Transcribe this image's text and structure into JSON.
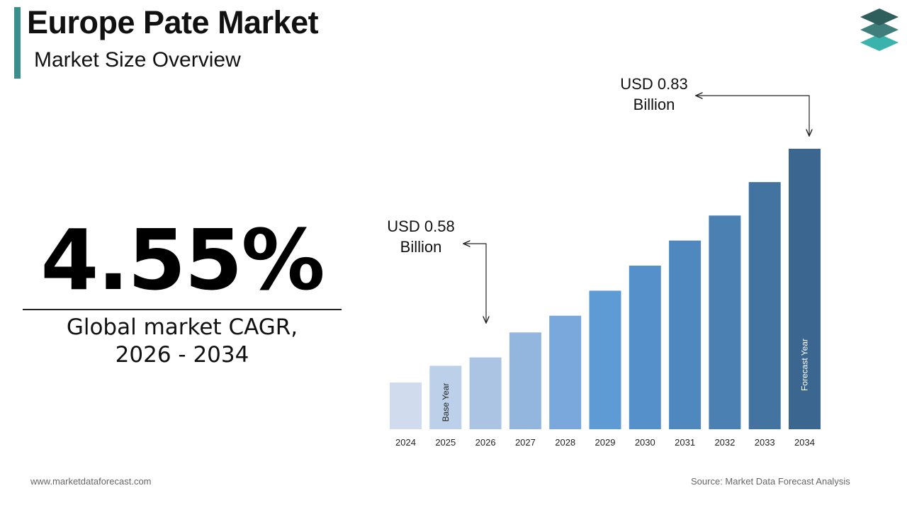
{
  "header": {
    "title": "Europe Pate Market",
    "subtitle": "Market Size Overview"
  },
  "logo": {
    "icon": "stacked-layers-logo-icon"
  },
  "kpi": {
    "value": "4.55%",
    "label_line1": "Global market CAGR,",
    "label_line2": "2026 - 2034"
  },
  "callouts": {
    "start": {
      "line1": "USD 0.58",
      "line2": "Billion"
    },
    "end": {
      "line1": "USD 0.83",
      "line2": "Billion"
    }
  },
  "chart_data": {
    "type": "bar",
    "categories": [
      "2024",
      "2025",
      "2026",
      "2027",
      "2028",
      "2029",
      "2030",
      "2031",
      "2032",
      "2033",
      "2034"
    ],
    "values": [
      0.55,
      0.57,
      0.58,
      0.61,
      0.63,
      0.66,
      0.69,
      0.72,
      0.75,
      0.79,
      0.83
    ],
    "bar_colors": [
      "#d0dcee",
      "#bdd0ea",
      "#abc4e4",
      "#93b6df",
      "#7aa8dc",
      "#5e9bd5",
      "#5690cb",
      "#4f88be",
      "#4a80b2",
      "#4373a1",
      "#3b668f"
    ],
    "bar_annotations": [
      {
        "category": "2025",
        "text": "Base Year"
      },
      {
        "category": "2034",
        "text": "Forecast Year"
      }
    ],
    "annotated_values": [
      {
        "category": "2026",
        "text": "USD 0.58 Billion"
      },
      {
        "category": "2034",
        "text": "USD 0.83 Billion"
      }
    ],
    "title": "",
    "xlabel": "",
    "ylabel": "",
    "grid": false,
    "legend": "none"
  },
  "footer": {
    "website": "www.marketdataforecast.com",
    "source": "Source: Market Data Forecast Analysis"
  }
}
